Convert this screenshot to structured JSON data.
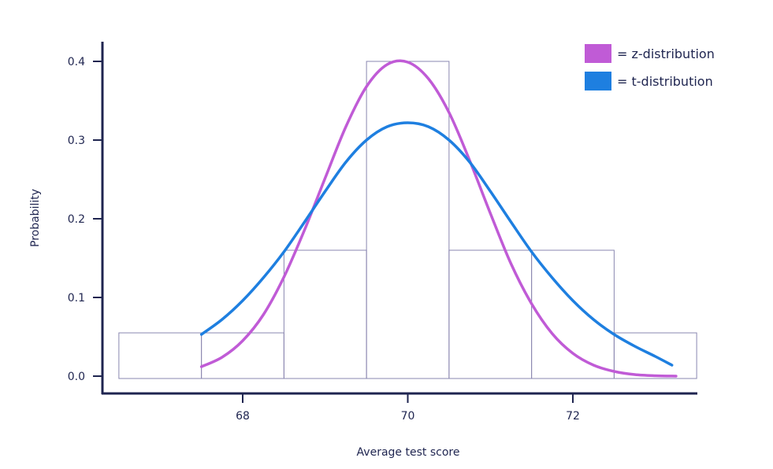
{
  "chart_data": {
    "type": "bar",
    "xlabel": "Average test score",
    "ylabel": "Probability",
    "xlim": [
      66.5,
      73.5
    ],
    "ylim": [
      0.0,
      0.4
    ],
    "x_ticks": [
      68,
      70,
      72
    ],
    "y_ticks": [
      0.0,
      0.1,
      0.2,
      0.3,
      0.4
    ],
    "y_tick_labels": [
      "0.0",
      "0.1",
      "0.2",
      "0.3",
      "0.4"
    ],
    "x_tick_labels": [
      "68",
      "70",
      "72"
    ],
    "grid": false,
    "legend_position": "top-right",
    "histogram": {
      "bins": [
        {
          "start": 66.5,
          "end": 67.5,
          "value": 0.055
        },
        {
          "start": 67.5,
          "end": 68.5,
          "value": 0.055
        },
        {
          "start": 68.5,
          "end": 69.5,
          "value": 0.16
        },
        {
          "start": 69.5,
          "end": 70.5,
          "value": 0.4
        },
        {
          "start": 70.5,
          "end": 71.5,
          "value": 0.16
        },
        {
          "start": 71.5,
          "end": 72.5,
          "value": 0.16
        },
        {
          "start": 72.5,
          "end": 73.5,
          "value": 0.055
        }
      ],
      "stroke_color": "#8a87b0"
    },
    "series": [
      {
        "name": "= z-distribution",
        "color": "#c05bd6",
        "type": "line",
        "x": [
          67.5,
          67.75,
          68.0,
          68.25,
          68.5,
          68.75,
          69.0,
          69.25,
          69.5,
          69.75,
          70.0,
          70.25,
          70.5,
          70.75,
          71.0,
          71.25,
          71.5,
          71.75,
          72.0,
          72.25,
          72.5,
          72.75,
          73.0,
          73.25
        ],
        "y": [
          0.012,
          0.024,
          0.045,
          0.078,
          0.126,
          0.186,
          0.252,
          0.317,
          0.368,
          0.396,
          0.399,
          0.378,
          0.335,
          0.274,
          0.207,
          0.143,
          0.092,
          0.054,
          0.029,
          0.014,
          0.006,
          0.002,
          0.0005,
          0.0
        ]
      },
      {
        "name": "= t-distribution",
        "color": "#1e7fe0",
        "type": "line",
        "x": [
          67.5,
          67.75,
          68.0,
          68.25,
          68.5,
          68.75,
          69.0,
          69.25,
          69.5,
          69.75,
          70.0,
          70.25,
          70.5,
          70.75,
          71.0,
          71.25,
          71.5,
          71.75,
          72.0,
          72.25,
          72.5,
          72.75,
          73.0,
          73.2
        ],
        "y": [
          0.053,
          0.072,
          0.096,
          0.125,
          0.158,
          0.196,
          0.235,
          0.272,
          0.3,
          0.317,
          0.322,
          0.317,
          0.3,
          0.272,
          0.235,
          0.196,
          0.158,
          0.125,
          0.096,
          0.072,
          0.053,
          0.038,
          0.025,
          0.014
        ]
      }
    ]
  }
}
